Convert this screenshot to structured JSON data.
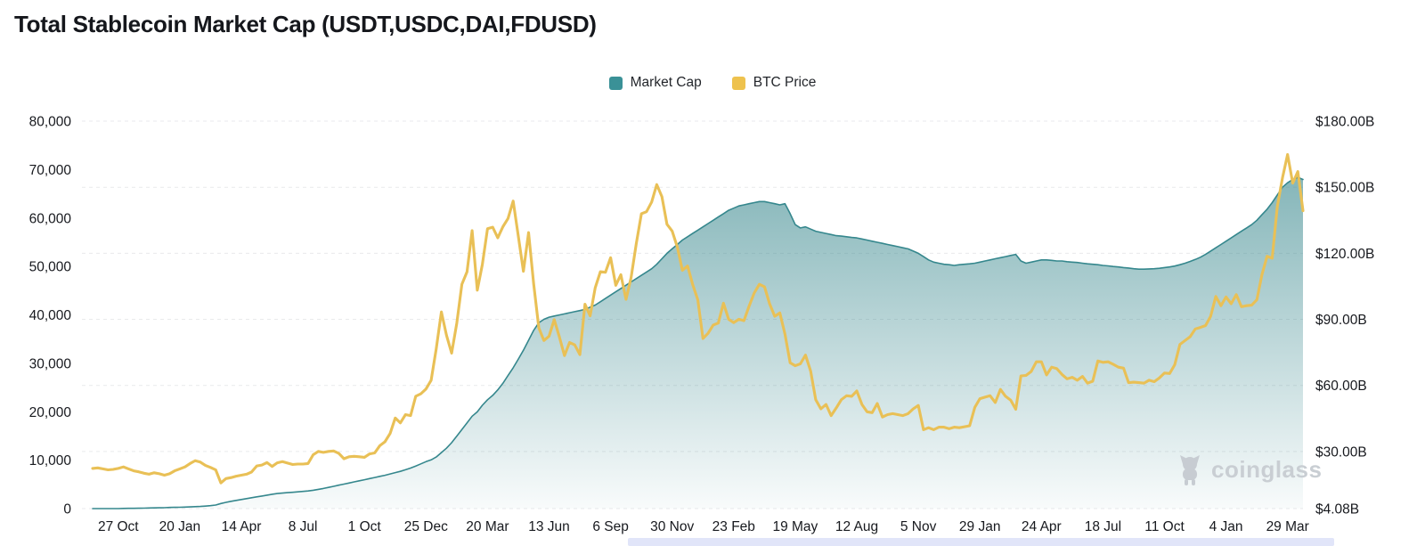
{
  "chart_data": {
    "type": "area",
    "title": "Total Stablecoin Market Cap (USDT,USDC,DAI,FDUSD)",
    "legend_position": "top-center",
    "grid": "horizontal dashed on right-axis ticks",
    "x_labels": [
      "27 Oct",
      "20 Jan",
      "14 Apr",
      "8 Jul",
      "1 Oct",
      "25 Dec",
      "20 Mar",
      "13 Jun",
      "6 Sep",
      "30 Nov",
      "23 Feb",
      "19 May",
      "12 Aug",
      "5 Nov",
      "29 Jan",
      "24 Apr",
      "18 Jul",
      "11 Oct",
      "4 Jan",
      "29 Mar"
    ],
    "x_label_start_index": 5,
    "x_label_step": 12,
    "left_axis": {
      "min": 0,
      "max": 80000,
      "ticks": [
        {
          "value": 80000,
          "label": "80,000"
        },
        {
          "value": 70000,
          "label": "70,000"
        },
        {
          "value": 60000,
          "label": "60,000"
        },
        {
          "value": 50000,
          "label": "50,000"
        },
        {
          "value": 40000,
          "label": "40,000"
        },
        {
          "value": 30000,
          "label": "30,000"
        },
        {
          "value": 20000,
          "label": "20,000"
        },
        {
          "value": 10000,
          "label": "10,000"
        },
        {
          "value": 0,
          "label": "0"
        }
      ]
    },
    "right_axis": {
      "min": 4.08,
      "max": 180,
      "ticks": [
        {
          "value": 180,
          "label": "$180.00B"
        },
        {
          "value": 150,
          "label": "$150.00B"
        },
        {
          "value": 120,
          "label": "$120.00B"
        },
        {
          "value": 90,
          "label": "$90.00B"
        },
        {
          "value": 60,
          "label": "$60.00B"
        },
        {
          "value": 30,
          "label": "$30.00B"
        },
        {
          "value": 4.08,
          "label": "$4.08B"
        }
      ]
    },
    "series": [
      {
        "name": "Market Cap",
        "type": "area",
        "axis": "right",
        "unit": "USD billions",
        "color": "#35878d",
        "legend_color": "#3a9197",
        "fill_top": "rgba(47,130,136,0.68)",
        "fill_bottom": "rgba(47,130,136,0.03)",
        "values": [
          4.08,
          4.08,
          4.1,
          4.1,
          4.1,
          4.1,
          4.15,
          4.2,
          4.2,
          4.25,
          4.3,
          4.35,
          4.4,
          4.45,
          4.5,
          4.6,
          4.65,
          4.7,
          4.75,
          4.85,
          4.95,
          5.05,
          5.2,
          5.4,
          5.7,
          6.4,
          6.9,
          7.4,
          7.8,
          8.2,
          8.6,
          9.0,
          9.4,
          9.8,
          10.2,
          10.6,
          10.9,
          11.1,
          11.3,
          11.5,
          11.7,
          11.9,
          12.1,
          12.4,
          12.8,
          13.2,
          13.7,
          14.2,
          14.7,
          15.2,
          15.7,
          16.2,
          16.7,
          17.2,
          17.7,
          18.2,
          18.7,
          19.2,
          19.8,
          20.4,
          21.0,
          21.7,
          22.5,
          23.4,
          24.4,
          25.4,
          26.2,
          27.5,
          29.5,
          31.5,
          34.0,
          37.0,
          40.0,
          43.0,
          46.0,
          48.0,
          51.0,
          53.5,
          55.5,
          58.0,
          61.0,
          64.5,
          68.0,
          72.0,
          76.0,
          80.5,
          85.0,
          88.5,
          90.0,
          91.0,
          91.5,
          92.0,
          92.5,
          93.0,
          93.5,
          94.0,
          94.5,
          95.5,
          96.5,
          98.0,
          99.5,
          101.0,
          102.5,
          104.0,
          105.5,
          107.0,
          108.5,
          110.0,
          111.5,
          113.0,
          115.0,
          117.5,
          120.0,
          122.0,
          124.0,
          126.0,
          127.5,
          129.0,
          130.5,
          132.0,
          133.5,
          135.0,
          136.5,
          138.0,
          139.5,
          140.5,
          141.5,
          142.0,
          142.5,
          143.0,
          143.5,
          143.5,
          143.0,
          142.5,
          142.0,
          142.5,
          138.0,
          133.0,
          131.5,
          132.0,
          131.0,
          130.0,
          129.5,
          129.0,
          128.5,
          128.0,
          127.8,
          127.5,
          127.2,
          127.0,
          126.5,
          126.0,
          125.5,
          125.0,
          124.5,
          124.0,
          123.5,
          123.0,
          122.5,
          122.0,
          121.0,
          120.0,
          118.5,
          117.0,
          116.0,
          115.5,
          115.0,
          114.8,
          114.5,
          114.8,
          115.0,
          115.2,
          115.5,
          116.0,
          116.5,
          117.0,
          117.5,
          118.0,
          118.5,
          119.0,
          119.5,
          116.5,
          115.5,
          116.0,
          116.5,
          117.0,
          117.0,
          116.8,
          116.5,
          116.5,
          116.2,
          116.0,
          115.8,
          115.5,
          115.2,
          115.0,
          114.8,
          114.5,
          114.3,
          114.0,
          113.8,
          113.5,
          113.3,
          113.0,
          112.8,
          112.8,
          112.9,
          113.0,
          113.2,
          113.5,
          113.8,
          114.2,
          114.8,
          115.5,
          116.3,
          117.2,
          118.2,
          119.5,
          121.0,
          122.5,
          124.0,
          125.5,
          127.0,
          128.5,
          130.0,
          131.5,
          133.0,
          135.0,
          137.5,
          140.0,
          143.0,
          146.5,
          150.0,
          152.0,
          153.5,
          154.5,
          153.5
        ]
      },
      {
        "name": "BTC Price",
        "type": "line",
        "axis": "left",
        "unit": "USD",
        "color": "#e9c056",
        "legend_color": "#eec24e",
        "values": [
          8300,
          8400,
          8200,
          8000,
          8100,
          8300,
          8600,
          8200,
          7800,
          7600,
          7300,
          7100,
          7400,
          7200,
          6900,
          7200,
          7800,
          8200,
          8600,
          9300,
          9900,
          9600,
          8900,
          8500,
          8000,
          5300,
          6200,
          6400,
          6700,
          6900,
          7100,
          7550,
          8800,
          9000,
          9500,
          8700,
          9450,
          9700,
          9400,
          9100,
          9200,
          9200,
          9300,
          11100,
          11800,
          11600,
          11800,
          11900,
          11400,
          10300,
          10700,
          10800,
          10700,
          10600,
          11300,
          11500,
          13000,
          13800,
          15500,
          18700,
          17700,
          19400,
          19200,
          23200,
          23700,
          24700,
          26500,
          33000,
          40600,
          35800,
          32100,
          38300,
          46300,
          48900,
          57400,
          45100,
          50400,
          57800,
          58100,
          55900,
          58200,
          59900,
          63500,
          56200,
          49000,
          57000,
          46400,
          37300,
          34700,
          35600,
          39000,
          35500,
          31600,
          34300,
          33800,
          31800,
          42200,
          39800,
          45600,
          48900,
          48800,
          51800,
          46100,
          48300,
          43200,
          47700,
          54700,
          60900,
          61300,
          63300,
          66900,
          64400,
          58700,
          57300,
          54000,
          49200,
          50100,
          46300,
          43100,
          35100,
          36200,
          37900,
          38300,
          42400,
          39100,
          38400,
          39100,
          38800,
          41800,
          44500,
          46300,
          45800,
          42300,
          39700,
          40400,
          36000,
          30100,
          29500,
          29900,
          31700,
          28400,
          22500,
          20600,
          21500,
          19200,
          20800,
          22500,
          23300,
          23200,
          24300,
          21500,
          20000,
          19800,
          21700,
          18900,
          19400,
          19600,
          19400,
          19200,
          19600,
          20600,
          21300,
          16300,
          16700,
          16300,
          16800,
          16800,
          16500,
          16800,
          16700,
          16900,
          17100,
          20900,
          22700,
          23000,
          23300,
          21900,
          24600,
          23200,
          22400,
          20500,
          27400,
          27500,
          28300,
          30300,
          30300,
          27600,
          29200,
          28900,
          27700,
          26800,
          27100,
          26500,
          27300,
          25900,
          26300,
          30500,
          30200,
          30300,
          29800,
          29200,
          29000,
          26000,
          26100,
          26000,
          25900,
          26500,
          26200,
          27000,
          28000,
          27900,
          29700,
          33900,
          34700,
          35500,
          37100,
          37400,
          37800,
          39700,
          43800,
          41900,
          43700,
          42300,
          44200,
          41700,
          41900,
          42000,
          43100,
          48300,
          52100,
          51700,
          62400,
          68300,
          73100,
          67200,
          69600,
          61500
        ]
      }
    ]
  },
  "watermark": {
    "text": "coinglass"
  },
  "ui": {
    "background_color": "#ffffff",
    "scrollbar_color": "#e1e5f9",
    "grid_color": "#e9eaec",
    "text_color": "#17191e"
  }
}
